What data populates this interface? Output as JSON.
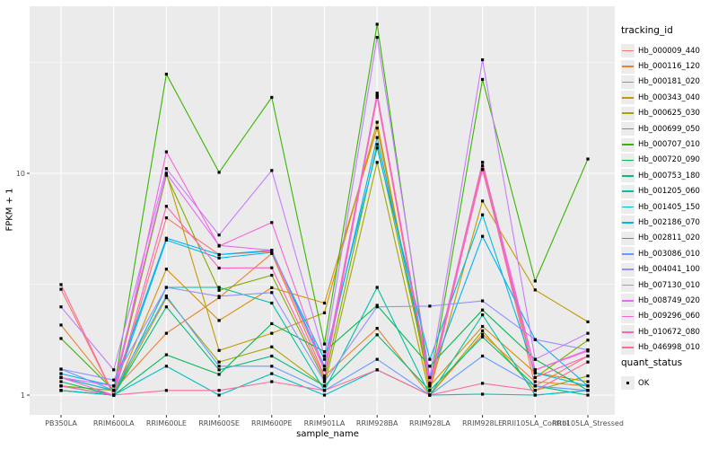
{
  "colors": {
    "panel_bg": "#EBEBEB",
    "grid_major": "#FFFFFF",
    "grid_minor": "#FFFFFF",
    "tick_text": "#4D4D4D",
    "tick_mark": "#333333",
    "point": "#000000",
    "page_bg": "#FFFFFF",
    "legend_key_bg": "#ECECEC"
  },
  "legend": {
    "tracking_title": "tracking_id",
    "quant_title": "quant_status",
    "quant_ok_label": "OK"
  },
  "chart_data": {
    "type": "line",
    "title": "",
    "xlabel": "sample_name",
    "ylabel": "FPKM + 1",
    "y_scale": "log10",
    "y_ticks": [
      1,
      10
    ],
    "y_tick_labels": [
      "1",
      "10"
    ],
    "y_minor_ticks": [
      3.162,
      31.62
    ],
    "ylim": [
      0.81,
      56.6
    ],
    "grid": true,
    "legend_position": "right",
    "categories": [
      "PB350LA",
      "RRIM600LA",
      "RRIM600LE",
      "RRIM600SE",
      "RRIM600PE",
      "RRIM901LA",
      "RRIM928BA",
      "RRIM928LA",
      "RRIM928LE",
      "RRII105LA_Control",
      "RRII105LA_Stressed"
    ],
    "series": [
      {
        "name": "Hb_000009_440",
        "color": "#F8766D",
        "values": [
          3.0,
          1.0,
          6.3,
          4.3,
          4.45,
          1.3,
          22.0,
          1.05,
          10.8,
          1.1,
          1.5
        ]
      },
      {
        "name": "Hb_000116_120",
        "color": "#EA8331",
        "values": [
          2.07,
          1.05,
          1.9,
          2.75,
          4.35,
          1.22,
          2.0,
          1.0,
          1.88,
          1.15,
          1.1
        ]
      },
      {
        "name": "Hb_000181_020",
        "color": "#D89000",
        "values": [
          1.1,
          1.0,
          3.7,
          2.17,
          3.05,
          2.6,
          16.0,
          1.1,
          2.04,
          1.26,
          1.15
        ]
      },
      {
        "name": "Hb_000343_040",
        "color": "#C49A00",
        "values": [
          1.2,
          1.05,
          10.0,
          1.59,
          1.9,
          2.35,
          17.0,
          1.05,
          7.5,
          2.98,
          2.14
        ]
      },
      {
        "name": "Hb_000625_030",
        "color": "#A3A500",
        "values": [
          1.05,
          1.0,
          2.75,
          1.41,
          1.65,
          1.1,
          11.2,
          1.0,
          1.95,
          1.05,
          1.22
        ]
      },
      {
        "name": "Hb_000699_050",
        "color": "#7CAE00",
        "values": [
          1.1,
          1.05,
          9.8,
          2.97,
          3.47,
          1.17,
          13.5,
          1.13,
          11.2,
          1.2,
          1.77
        ]
      },
      {
        "name": "Hb_000707_010",
        "color": "#39B600",
        "values": [
          1.8,
          1.05,
          28.0,
          10.1,
          22.0,
          1.7,
          47.0,
          1.1,
          26.5,
          3.27,
          11.6
        ]
      },
      {
        "name": "Hb_000720_090",
        "color": "#00BB4E",
        "values": [
          1.15,
          1.0,
          1.52,
          1.24,
          2.1,
          1.57,
          2.54,
          1.35,
          2.42,
          1.45,
          1.05
        ]
      },
      {
        "name": "Hb_000753_180",
        "color": "#00BF7D",
        "values": [
          1.05,
          1.0,
          2.5,
          1.3,
          1.5,
          1.1,
          1.87,
          1.05,
          1.83,
          1.1,
          1.0
        ]
      },
      {
        "name": "Hb_001205_060",
        "color": "#00C1A3",
        "values": [
          1.1,
          1.0,
          3.06,
          3.06,
          2.6,
          1.05,
          3.06,
          1.0,
          2.3,
          1.0,
          1.05
        ]
      },
      {
        "name": "Hb_001405_150",
        "color": "#00BFC4",
        "values": [
          1.05,
          1.0,
          1.35,
          1.0,
          1.25,
          1.0,
          1.3,
          1.0,
          1.01,
          1.0,
          1.05
        ]
      },
      {
        "name": "Hb_002186_070",
        "color": "#00BAE0",
        "values": [
          1.2,
          1.05,
          5.0,
          4.15,
          4.4,
          1.45,
          13.0,
          1.45,
          6.5,
          1.26,
          1.1
        ]
      },
      {
        "name": "Hb_002811_020",
        "color": "#00B0F6",
        "values": [
          1.25,
          1.1,
          5.1,
          4.3,
          4.5,
          1.35,
          14.5,
          1.2,
          5.2,
          1.78,
          1.1
        ]
      },
      {
        "name": "Hb_003086_010",
        "color": "#619CFF",
        "values": [
          1.31,
          1.05,
          2.8,
          1.35,
          1.35,
          1.05,
          1.45,
          1.0,
          1.5,
          1.1,
          1.05
        ]
      },
      {
        "name": "Hb_004041_100",
        "color": "#9590FF",
        "values": [
          1.31,
          1.17,
          3.06,
          2.79,
          2.9,
          1.15,
          2.5,
          2.52,
          2.66,
          1.78,
          1.6
        ]
      },
      {
        "name": "Hb_007130_010",
        "color": "#C77CFF",
        "values": [
          2.5,
          1.3,
          10.5,
          5.27,
          10.3,
          1.5,
          41.0,
          1.2,
          32.5,
          1.45,
          1.9
        ]
      },
      {
        "name": "Hb_008749_020",
        "color": "#E76BF3",
        "values": [
          1.2,
          1.1,
          10.0,
          4.73,
          4.5,
          1.3,
          23.0,
          1.1,
          10.4,
          1.3,
          1.58
        ]
      },
      {
        "name": "Hb_009296_060",
        "color": "#FA62DB",
        "values": [
          1.2,
          1.0,
          12.5,
          4.7,
          6.0,
          1.3,
          22.5,
          1.13,
          11.2,
          1.3,
          1.6
        ]
      },
      {
        "name": "Hb_010672_080",
        "color": "#FF62BC",
        "values": [
          1.1,
          1.0,
          7.1,
          3.74,
          3.75,
          1.2,
          22.3,
          1.13,
          10.4,
          1.2,
          1.5
        ]
      },
      {
        "name": "Hb_046998_010",
        "color": "#FF6A98",
        "values": [
          3.15,
          1.0,
          1.05,
          1.05,
          1.15,
          1.05,
          1.3,
          1.0,
          1.13,
          1.05,
          1.41
        ]
      }
    ]
  }
}
